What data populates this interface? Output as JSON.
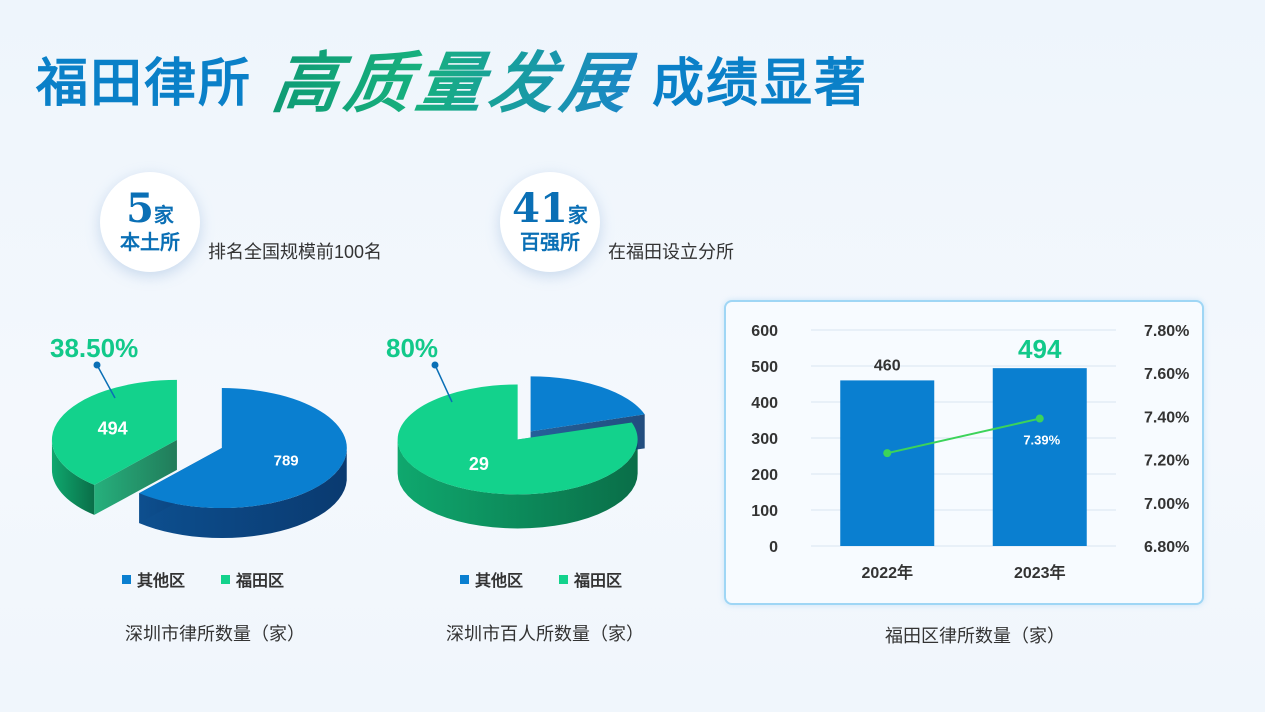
{
  "title": {
    "part1": "福田律所",
    "part2": "高质量发展",
    "part3": "成绩显著"
  },
  "badges": [
    {
      "number": "5",
      "unit": "家",
      "label": "本土所",
      "desc": "排名全国规模前100名"
    },
    {
      "number": "41",
      "unit": "家",
      "label": "百强所",
      "desc": "在福田设立分所"
    }
  ],
  "colors": {
    "blue": "#0a7fd0",
    "green": "#13d28c",
    "accent_text": "#12c98a"
  },
  "chart_data": [
    {
      "type": "pie",
      "title": "深圳市律所数量（家）",
      "percent_label": "38.50%",
      "slices": [
        {
          "name": "其他区",
          "value": 789,
          "label": "789"
        },
        {
          "name": "福田区",
          "value": 494,
          "label": "494"
        }
      ],
      "legend": [
        "其他区",
        "福田区"
      ]
    },
    {
      "type": "pie",
      "title": "深圳市百人所数量（家）",
      "percent_label": "80%",
      "slices": [
        {
          "name": "其他区",
          "value": 7.25,
          "label": ""
        },
        {
          "name": "福田区",
          "value": 29,
          "label": "29"
        }
      ],
      "legend": [
        "其他区",
        "福田区"
      ]
    },
    {
      "type": "bar",
      "title": "福田区律所数量（家）",
      "categories": [
        "2022年",
        "2023年"
      ],
      "values": [
        460,
        494
      ],
      "value_labels": [
        "460",
        "494"
      ],
      "ylim": [
        0,
        600
      ],
      "yticks": [
        "600",
        "500",
        "400",
        "300",
        "200",
        "100",
        "0"
      ],
      "y2lim": [
        6.8,
        7.8
      ],
      "y2ticks": [
        "7.80%",
        "7.60%",
        "7.40%",
        "7.20%",
        "7.00%",
        "6.80%"
      ],
      "line": {
        "values": [
          7.23,
          7.39
        ],
        "labels": [
          "",
          "7.39%"
        ]
      }
    }
  ]
}
